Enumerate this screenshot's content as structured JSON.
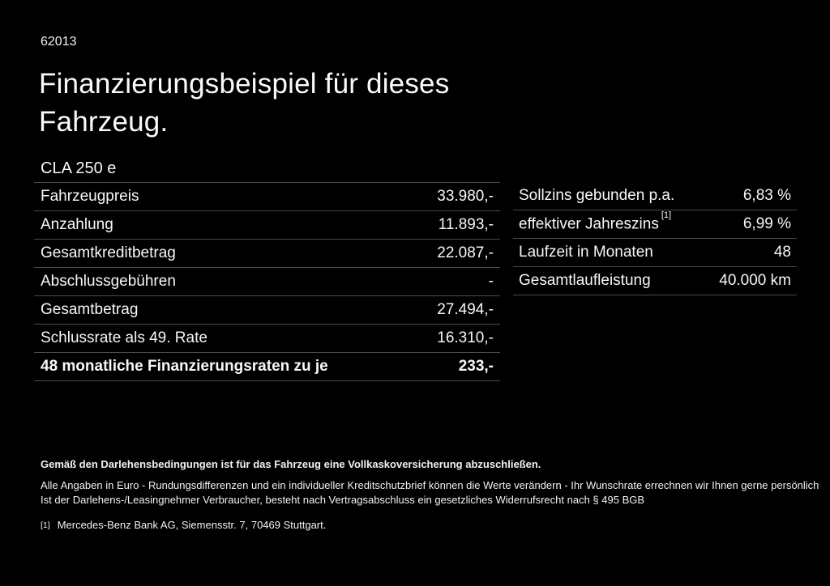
{
  "page": {
    "doc_number": "62013",
    "title_line1": "Finanzierungsbeispiel für dieses",
    "title_line2": "Fahrzeug.",
    "model": "CLA 250 e"
  },
  "finance_table": {
    "rows": [
      {
        "label": "Fahrzeugpreis",
        "value": "33.980,-"
      },
      {
        "label": "Anzahlung",
        "value": "11.893,-"
      },
      {
        "label": "Gesamtkreditbetrag",
        "value": "22.087,-"
      },
      {
        "label": "Abschlussgebühren",
        "value": "-"
      },
      {
        "label": "Gesamtbetrag",
        "value": "27.494,-"
      },
      {
        "label": "Schlussrate als 49. Rate",
        "value": "16.310,-"
      },
      {
        "label": "48 monatliche Finanzierungsraten zu je",
        "value": "233,-"
      }
    ]
  },
  "conditions_table": {
    "rows": [
      {
        "label": "Sollzins gebunden p.a.",
        "sup": "",
        "value": "6,83 %"
      },
      {
        "label": "effektiver Jahreszins",
        "sup": "[1]",
        "value": "6,99 %"
      },
      {
        "label": "Laufzeit in Monaten",
        "sup": "",
        "value": "48"
      },
      {
        "label": "Gesamtlaufleistung",
        "sup": "",
        "value": "40.000 km"
      }
    ]
  },
  "footer": {
    "bold_note": "Gemäß den Darlehensbedingungen ist für das Fahrzeug eine Vollkaskoversicherung abzuschließen.",
    "note_line1": "Alle Angaben in Euro - Rundungsdifferenzen und ein individueller Kreditschutzbrief können die Werte verändern - Ihr Wunschrate errechnen wir Ihnen gerne persönlich",
    "note_line2": "Ist der Darlehens-/Leasingnehmer Verbraucher, besteht nach Vertragsabschluss ein gesetzliches Widerrufsrecht nach § 495 BGB",
    "footnote_marker": "[1]",
    "footnote_text": "Mercedes-Benz Bank AG, Siemensstr. 7, 70469 Stuttgart."
  },
  "colors": {
    "background": "#000000",
    "text": "#f7f7f7",
    "divider": "#4a4a4a"
  }
}
